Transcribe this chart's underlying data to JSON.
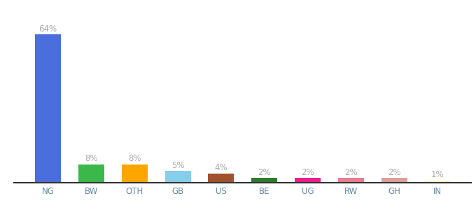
{
  "categories": [
    "NG",
    "BW",
    "OTH",
    "GB",
    "US",
    "BE",
    "UG",
    "RW",
    "GH",
    "IN"
  ],
  "values": [
    64,
    8,
    8,
    5,
    4,
    2,
    2,
    2,
    2,
    1
  ],
  "bar_colors": [
    "#4a6fdc",
    "#3cb84a",
    "#ffa500",
    "#87ceeb",
    "#a0522d",
    "#2e7a2e",
    "#e91e8c",
    "#e87d8d",
    "#d9a09a",
    "#f5f5d0"
  ],
  "labels": [
    "64%",
    "8%",
    "8%",
    "5%",
    "4%",
    "2%",
    "2%",
    "2%",
    "2%",
    "1%"
  ],
  "label_color": "#aaaaaa",
  "label_fontsize": 8.5,
  "xlabel_fontsize": 8.5,
  "xlabel_color": "#6688aa",
  "background_color": "#ffffff",
  "ylim": [
    0,
    68
  ],
  "bar_width": 0.6,
  "figsize": [
    6.8,
    3.0
  ],
  "dpi": 100
}
